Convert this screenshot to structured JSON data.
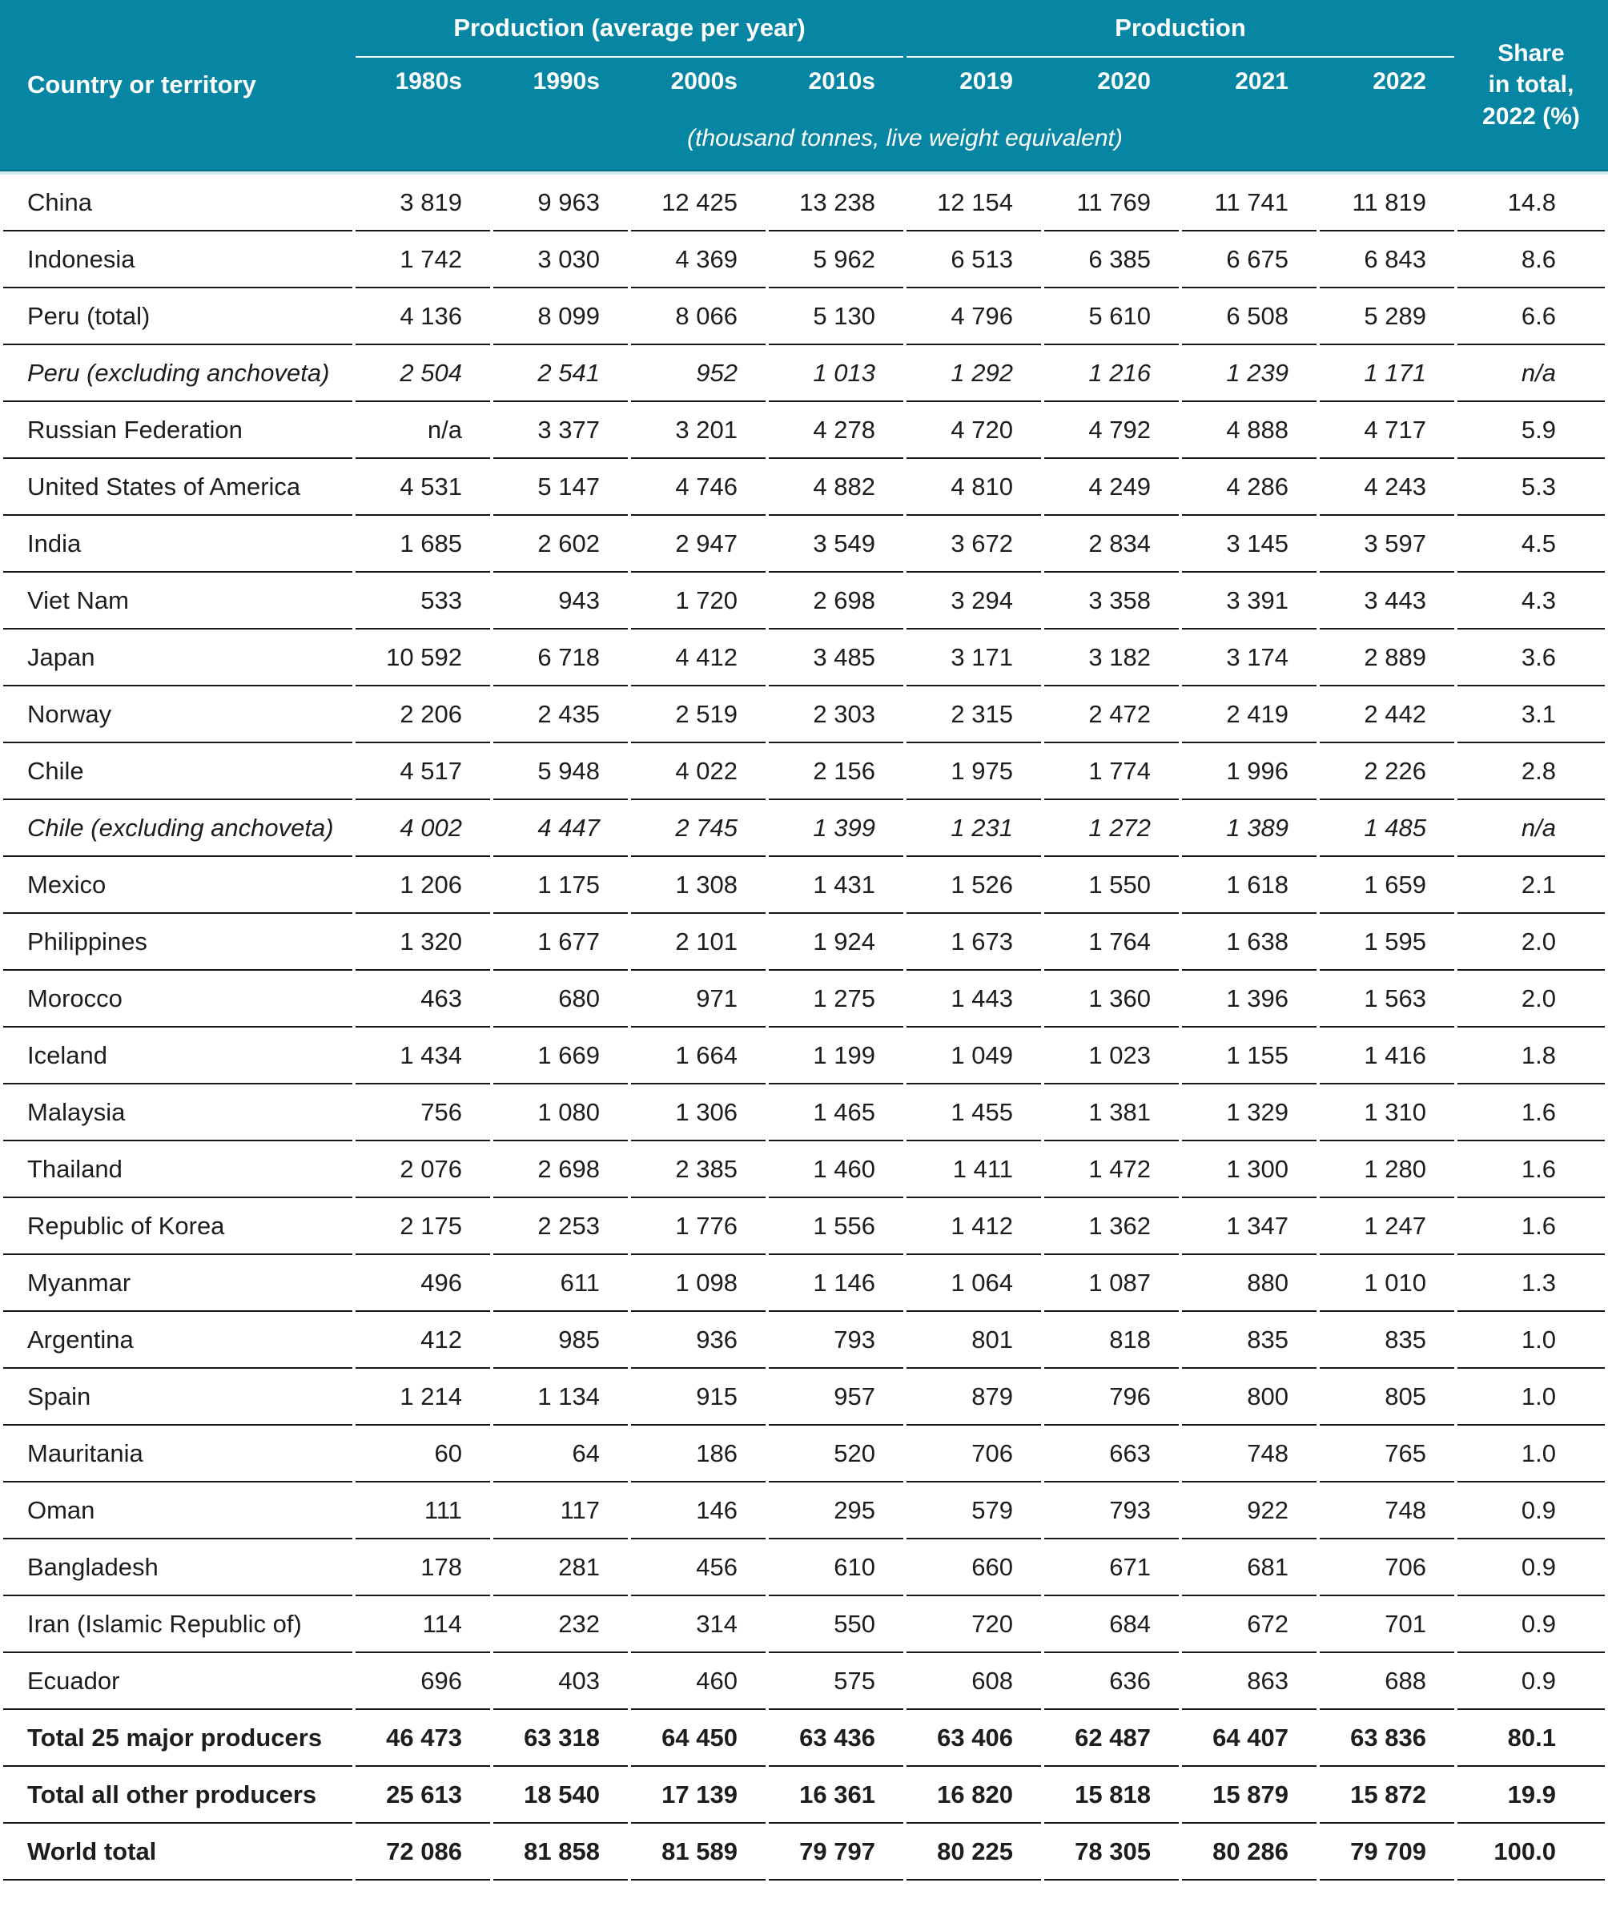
{
  "table": {
    "colors": {
      "header_bg": "#0786a4",
      "header_bg_dark_strip": "#056f87",
      "header_pale_strip": "#cfe9ef",
      "row_line": "#1a1817",
      "body_text": "#1d1d1b",
      "header_text": "#ffffff"
    },
    "header": {
      "country_label": "Country or territory",
      "group1": {
        "title": "Production (average per year)",
        "cols": [
          "1980s",
          "1990s",
          "2000s",
          "2010s"
        ]
      },
      "group2": {
        "title": "Production",
        "cols": [
          "2019",
          "2020",
          "2021",
          "2022"
        ]
      },
      "share_lines": [
        "Share",
        "in total,",
        "2022 (%)"
      ],
      "unit_note": "(thousand tonnes, live weight equivalent)"
    },
    "rows": [
      {
        "name": "China",
        "style": "normal",
        "values": [
          "3 819",
          "9 963",
          "12 425",
          "13 238",
          "12 154",
          "11 769",
          "11 741",
          "11 819",
          "14.8"
        ]
      },
      {
        "name": "Indonesia",
        "style": "normal",
        "values": [
          "1 742",
          "3 030",
          "4 369",
          "5 962",
          "6 513",
          "6 385",
          "6 675",
          "6 843",
          "8.6"
        ]
      },
      {
        "name": "Peru (total)",
        "style": "normal",
        "values": [
          "4 136",
          "8 099",
          "8 066",
          "5 130",
          "4 796",
          "5 610",
          "6 508",
          "5 289",
          "6.6"
        ]
      },
      {
        "name": "Peru (excluding anchoveta)",
        "style": "italic",
        "values": [
          "2 504",
          "2 541",
          "952",
          "1 013",
          "1 292",
          "1 216",
          "1 239",
          "1 171",
          "n/a"
        ]
      },
      {
        "name": "Russian Federation",
        "style": "normal",
        "values": [
          "n/a",
          "3 377",
          "3 201",
          "4 278",
          "4 720",
          "4 792",
          "4 888",
          "4 717",
          "5.9"
        ]
      },
      {
        "name": "United States of America",
        "style": "normal",
        "values": [
          "4 531",
          "5 147",
          "4 746",
          "4 882",
          "4 810",
          "4 249",
          "4 286",
          "4 243",
          "5.3"
        ]
      },
      {
        "name": "India",
        "style": "normal",
        "values": [
          "1 685",
          "2 602",
          "2 947",
          "3 549",
          "3 672",
          "2 834",
          "3 145",
          "3 597",
          "4.5"
        ]
      },
      {
        "name": "Viet Nam",
        "style": "normal",
        "values": [
          "533",
          "943",
          "1 720",
          "2 698",
          "3 294",
          "3 358",
          "3 391",
          "3 443",
          "4.3"
        ]
      },
      {
        "name": "Japan",
        "style": "normal",
        "values": [
          "10 592",
          "6 718",
          "4 412",
          "3 485",
          "3 171",
          "3 182",
          "3 174",
          "2 889",
          "3.6"
        ]
      },
      {
        "name": "Norway",
        "style": "normal",
        "values": [
          "2 206",
          "2 435",
          "2 519",
          "2 303",
          "2 315",
          "2 472",
          "2 419",
          "2 442",
          "3.1"
        ]
      },
      {
        "name": "Chile",
        "style": "normal",
        "values": [
          "4 517",
          "5 948",
          "4 022",
          "2 156",
          "1 975",
          "1 774",
          "1 996",
          "2 226",
          "2.8"
        ]
      },
      {
        "name": "Chile (excluding anchoveta)",
        "style": "italic",
        "values": [
          "4 002",
          "4 447",
          "2 745",
          "1 399",
          "1 231",
          "1 272",
          "1 389",
          "1 485",
          "n/a"
        ]
      },
      {
        "name": "Mexico",
        "style": "normal",
        "values": [
          "1 206",
          "1 175",
          "1 308",
          "1 431",
          "1 526",
          "1 550",
          "1 618",
          "1 659",
          "2.1"
        ]
      },
      {
        "name": "Philippines",
        "style": "normal",
        "values": [
          "1 320",
          "1 677",
          "2 101",
          "1 924",
          "1 673",
          "1 764",
          "1 638",
          "1 595",
          "2.0"
        ]
      },
      {
        "name": "Morocco",
        "style": "normal",
        "values": [
          "463",
          "680",
          "971",
          "1 275",
          "1 443",
          "1 360",
          "1 396",
          "1 563",
          "2.0"
        ]
      },
      {
        "name": "Iceland",
        "style": "normal",
        "values": [
          "1 434",
          "1 669",
          "1 664",
          "1 199",
          "1 049",
          "1 023",
          "1 155",
          "1 416",
          "1.8"
        ]
      },
      {
        "name": "Malaysia",
        "style": "normal",
        "values": [
          "756",
          "1 080",
          "1 306",
          "1 465",
          "1 455",
          "1 381",
          "1 329",
          "1 310",
          "1.6"
        ]
      },
      {
        "name": "Thailand",
        "style": "normal",
        "values": [
          "2 076",
          "2 698",
          "2 385",
          "1 460",
          "1 411",
          "1 472",
          "1 300",
          "1 280",
          "1.6"
        ]
      },
      {
        "name": "Republic of Korea",
        "style": "normal",
        "values": [
          "2 175",
          "2 253",
          "1 776",
          "1 556",
          "1 412",
          "1 362",
          "1 347",
          "1 247",
          "1.6"
        ]
      },
      {
        "name": "Myanmar",
        "style": "normal",
        "values": [
          "496",
          "611",
          "1 098",
          "1 146",
          "1 064",
          "1 087",
          "880",
          "1 010",
          "1.3"
        ]
      },
      {
        "name": "Argentina",
        "style": "normal",
        "values": [
          "412",
          "985",
          "936",
          "793",
          "801",
          "818",
          "835",
          "835",
          "1.0"
        ]
      },
      {
        "name": "Spain",
        "style": "normal",
        "values": [
          "1 214",
          "1 134",
          "915",
          "957",
          "879",
          "796",
          "800",
          "805",
          "1.0"
        ]
      },
      {
        "name": "Mauritania",
        "style": "normal",
        "values": [
          "60",
          "64",
          "186",
          "520",
          "706",
          "663",
          "748",
          "765",
          "1.0"
        ]
      },
      {
        "name": "Oman",
        "style": "normal",
        "values": [
          "111",
          "117",
          "146",
          "295",
          "579",
          "793",
          "922",
          "748",
          "0.9"
        ]
      },
      {
        "name": "Bangladesh",
        "style": "normal",
        "values": [
          "178",
          "281",
          "456",
          "610",
          "660",
          "671",
          "681",
          "706",
          "0.9"
        ]
      },
      {
        "name": "Iran (Islamic Republic of)",
        "style": "normal",
        "values": [
          "114",
          "232",
          "314",
          "550",
          "720",
          "684",
          "672",
          "701",
          "0.9"
        ]
      },
      {
        "name": "Ecuador",
        "style": "normal",
        "values": [
          "696",
          "403",
          "460",
          "575",
          "608",
          "636",
          "863",
          "688",
          "0.9"
        ]
      },
      {
        "name": "Total 25 major producers",
        "style": "bold",
        "values": [
          "46 473",
          "63 318",
          "64 450",
          "63 436",
          "63 406",
          "62 487",
          "64 407",
          "63 836",
          "80.1"
        ]
      },
      {
        "name": "Total all other producers",
        "style": "bold",
        "values": [
          "25 613",
          "18 540",
          "17 139",
          "16 361",
          "16 820",
          "15 818",
          "15 879",
          "15 872",
          "19.9"
        ]
      },
      {
        "name": "World total",
        "style": "bold",
        "values": [
          "72 086",
          "81 858",
          "81 589",
          "79 797",
          "80 225",
          "78 305",
          "80 286",
          "79 709",
          "100.0"
        ]
      }
    ]
  }
}
